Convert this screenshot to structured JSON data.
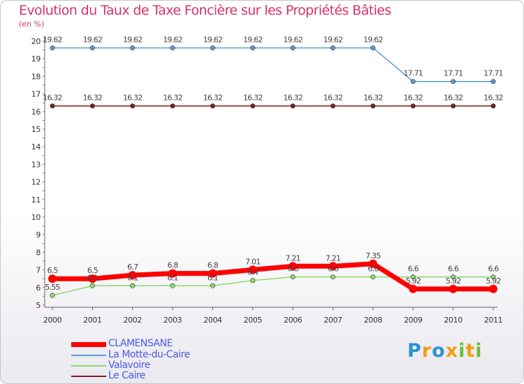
{
  "title": "Evolution du Taux de Taxe Foncière sur les Propriétés Bâties",
  "unit_label": "(en %)",
  "brand": {
    "letters": [
      "P",
      "r",
      "o",
      "x",
      "i",
      "t",
      "i"
    ]
  },
  "chart_data": {
    "type": "line",
    "title": "Evolution du Taux de Taxe Foncière sur les Propriétés Bâties",
    "xlabel": "",
    "ylabel": "(en %)",
    "x": [
      "2000",
      "2001",
      "2002",
      "2003",
      "2004",
      "2005",
      "2006",
      "2007",
      "2008",
      "2009",
      "2010",
      "2011"
    ],
    "y_ticks": [
      "5",
      "6",
      "7",
      "8",
      "9",
      "10",
      "11",
      "12",
      "13",
      "14",
      "15",
      "16",
      "17",
      "18",
      "19",
      "20"
    ],
    "ylim": [
      5,
      20
    ],
    "grid": false,
    "legend_position": "bottom-left",
    "series": [
      {
        "name": "CLAMENSANE",
        "color": "#ff0000",
        "values": [
          6.5,
          6.5,
          6.7,
          6.8,
          6.8,
          7.01,
          7.21,
          7.21,
          7.35,
          5.92,
          5.92,
          5.92
        ],
        "labels": [
          "6.5",
          "6.5",
          "6.7",
          "6.8",
          "6.8",
          "7.01",
          "7.21",
          "7.21",
          "7.35",
          "5.92",
          "5.92",
          "5.92"
        ]
      },
      {
        "name": "La Motte-du-Caire",
        "color": "#5b9bd5",
        "values": [
          19.62,
          19.62,
          19.62,
          19.62,
          19.62,
          19.62,
          19.62,
          19.62,
          19.62,
          17.71,
          17.71,
          17.71
        ],
        "labels": [
          "19.62",
          "19.62",
          "19.62",
          "19.62",
          "19.62",
          "19.62",
          "19.62",
          "19.62",
          "19.62",
          "17.71",
          "17.71",
          "17.71"
        ]
      },
      {
        "name": "Valavoire",
        "color": "#8ed96b",
        "values": [
          5.55,
          6.1,
          6.1,
          6.1,
          6.1,
          6.4,
          6.6,
          6.6,
          6.6,
          6.6,
          6.6,
          6.6
        ],
        "labels": [
          "5.55",
          "6.1",
          "6.1",
          "6.1",
          "6.1",
          "6.4",
          "6.6",
          "6.6",
          "6.6",
          "6.6",
          "6.6",
          "6.6"
        ]
      },
      {
        "name": "Le Caire",
        "color": "#7b1f22",
        "values": [
          16.32,
          16.32,
          16.32,
          16.32,
          16.32,
          16.32,
          16.32,
          16.32,
          16.32,
          16.32,
          16.32,
          16.32
        ],
        "labels": [
          "16.32",
          "16.32",
          "16.32",
          "16.32",
          "16.32",
          "16.32",
          "16.32",
          "16.32",
          "16.32",
          "16.32",
          "16.32",
          "16.32"
        ]
      }
    ]
  }
}
